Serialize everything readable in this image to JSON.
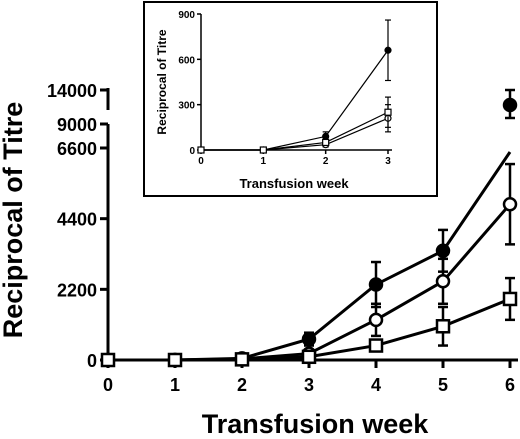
{
  "chart_data": [
    {
      "type": "line",
      "xlabel": "Transfusion week",
      "ylabel": "Reciprocal of Titre",
      "x": [
        0,
        1,
        2,
        3,
        4,
        5,
        6
      ],
      "xlim": [
        0,
        6
      ],
      "ylim": [
        0,
        6600
      ],
      "y_break": {
        "ticks_above_break": [
          "9000",
          "14000"
        ]
      },
      "xticks": [
        "0",
        "1",
        "2",
        "3",
        "4",
        "5",
        "6"
      ],
      "yticks": [
        "0",
        "2200",
        "4400",
        "6600"
      ],
      "grid": false,
      "legend": "none",
      "series": [
        {
          "marker": "filled-circle",
          "values": [
            0,
            0,
            50,
            650,
            2350,
            3400,
            9000
          ],
          "errors": [
            0,
            0,
            30,
            200,
            700,
            650,
            900
          ]
        },
        {
          "marker": "open-circle",
          "values": [
            0,
            0,
            30,
            200,
            1250,
            2450,
            4850
          ],
          "errors": [
            0,
            0,
            20,
            100,
            500,
            700,
            1250
          ]
        },
        {
          "marker": "open-square",
          "values": [
            0,
            0,
            20,
            100,
            450,
            1050,
            1900
          ],
          "errors": [
            0,
            0,
            10,
            50,
            150,
            600,
            650
          ]
        }
      ]
    },
    {
      "type": "line",
      "xlabel": "Transfusion week",
      "ylabel": "Reciprocal of Titre",
      "x": [
        0,
        1,
        2,
        3
      ],
      "xlim": [
        0,
        3
      ],
      "ylim": [
        0,
        900
      ],
      "xticks": [
        "0",
        "1",
        "2",
        "3"
      ],
      "yticks": [
        "0",
        "300",
        "600",
        "900"
      ],
      "grid": false,
      "legend": "none",
      "series": [
        {
          "marker": "filled-circle",
          "values": [
            0,
            0,
            90,
            660
          ],
          "errors": [
            0,
            0,
            30,
            200
          ]
        },
        {
          "marker": "open-circle",
          "values": [
            0,
            0,
            35,
            210
          ],
          "errors": [
            0,
            0,
            15,
            90
          ]
        },
        {
          "marker": "open-square",
          "values": [
            0,
            0,
            50,
            250
          ],
          "errors": [
            0,
            0,
            20,
            100
          ]
        }
      ]
    }
  ]
}
